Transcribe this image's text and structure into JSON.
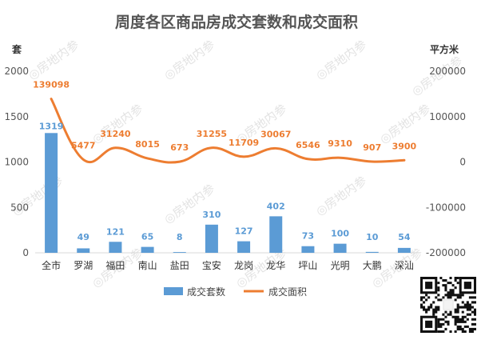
{
  "chart_data": {
    "type": "bar+line",
    "title": "周度各区商品房成交套数和成交面积",
    "categories": [
      "全市",
      "罗湖",
      "福田",
      "南山",
      "盐田",
      "宝安",
      "龙岗",
      "龙华",
      "坪山",
      "光明",
      "大鹏",
      "深汕"
    ],
    "series": [
      {
        "name": "成交套数",
        "type": "bar",
        "axis": "left",
        "color": "#5b9bd5",
        "values": [
          1319,
          49,
          121,
          65,
          8,
          310,
          127,
          402,
          73,
          100,
          10,
          54
        ]
      },
      {
        "name": "成交面积",
        "type": "line",
        "axis": "right",
        "color": "#ed7d31",
        "values": [
          139098,
          5477,
          31240,
          8015,
          673,
          31255,
          11709,
          30067,
          6546,
          9310,
          907,
          3900
        ]
      }
    ],
    "y_left": {
      "label": "套",
      "ylim": [
        0,
        2000
      ],
      "ticks": [
        0,
        500,
        1000,
        1500,
        2000
      ]
    },
    "y_right": {
      "label": "平方米",
      "ylim": [
        -200000,
        200000
      ],
      "ticks": [
        -200000,
        -100000,
        0,
        100000,
        200000
      ]
    },
    "legend_position": "bottom",
    "watermark": "房地内参",
    "grid": false
  }
}
